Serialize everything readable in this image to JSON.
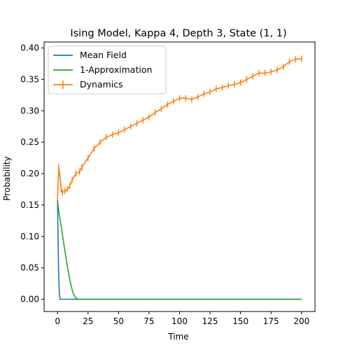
{
  "chart_data": {
    "type": "line",
    "title": "Ising Model, Kappa 4, Depth 3, State (1, 1)",
    "xlabel": "Time",
    "ylabel": "Probability",
    "xlim": [
      -11,
      211
    ],
    "ylim": [
      -0.0195,
      0.4095
    ],
    "xticks": [
      0,
      25,
      50,
      75,
      100,
      125,
      150,
      175,
      200
    ],
    "xtick_labels": [
      "0",
      "25",
      "50",
      "75",
      "100",
      "125",
      "150",
      "175",
      "200"
    ],
    "yticks": [
      0.0,
      0.05,
      0.1,
      0.15,
      0.2,
      0.25,
      0.3,
      0.35,
      0.4
    ],
    "ytick_labels": [
      "0.00",
      "0.05",
      "0.10",
      "0.15",
      "0.20",
      "0.25",
      "0.30",
      "0.35",
      "0.40"
    ],
    "grid": false,
    "legend_position": "top-left",
    "series": [
      {
        "name": "Mean Field",
        "color": "#1f77b4",
        "x": [
          0,
          0.5,
          1,
          1.5,
          2,
          3,
          200
        ],
        "y": [
          0.158,
          0.09,
          0.035,
          0.01,
          0.0,
          0.0,
          0.0
        ]
      },
      {
        "name": "1-Approximation",
        "color": "#2ca02c",
        "x": [
          0,
          1,
          2,
          3,
          4,
          5,
          6,
          7,
          8,
          9,
          10,
          11,
          12,
          13,
          14,
          15,
          16,
          17,
          18,
          20,
          200
        ],
        "y": [
          0.158,
          0.14,
          0.128,
          0.116,
          0.103,
          0.09,
          0.078,
          0.065,
          0.053,
          0.042,
          0.032,
          0.023,
          0.015,
          0.009,
          0.005,
          0.002,
          0.001,
          0.0,
          0.0,
          0.0,
          0.0
        ]
      },
      {
        "name": "Dynamics",
        "color": "#ff7f0e",
        "error_bar": 0.005,
        "x": [
          0,
          1,
          2,
          3,
          4,
          6,
          8,
          10,
          12,
          15,
          18,
          20,
          25,
          30,
          35,
          40,
          45,
          50,
          55,
          60,
          65,
          70,
          75,
          80,
          85,
          90,
          95,
          100,
          105,
          110,
          115,
          120,
          125,
          130,
          135,
          140,
          145,
          150,
          155,
          160,
          165,
          170,
          175,
          180,
          185,
          190,
          195,
          200
        ],
        "y": [
          0.16,
          0.21,
          0.195,
          0.175,
          0.17,
          0.172,
          0.175,
          0.18,
          0.19,
          0.2,
          0.203,
          0.21,
          0.225,
          0.24,
          0.25,
          0.258,
          0.262,
          0.265,
          0.27,
          0.275,
          0.28,
          0.285,
          0.29,
          0.297,
          0.303,
          0.31,
          0.315,
          0.32,
          0.32,
          0.318,
          0.322,
          0.327,
          0.33,
          0.335,
          0.337,
          0.34,
          0.342,
          0.345,
          0.35,
          0.355,
          0.36,
          0.36,
          0.362,
          0.365,
          0.37,
          0.378,
          0.382,
          0.383
        ]
      }
    ]
  }
}
